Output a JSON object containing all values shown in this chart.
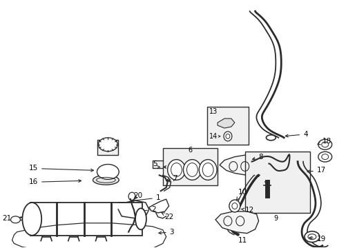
{
  "background_color": "#ffffff",
  "line_color": "#2a2a2a",
  "text_color": "#000000",
  "fig_width": 4.89,
  "fig_height": 3.6,
  "dpi": 100,
  "image_data": ""
}
